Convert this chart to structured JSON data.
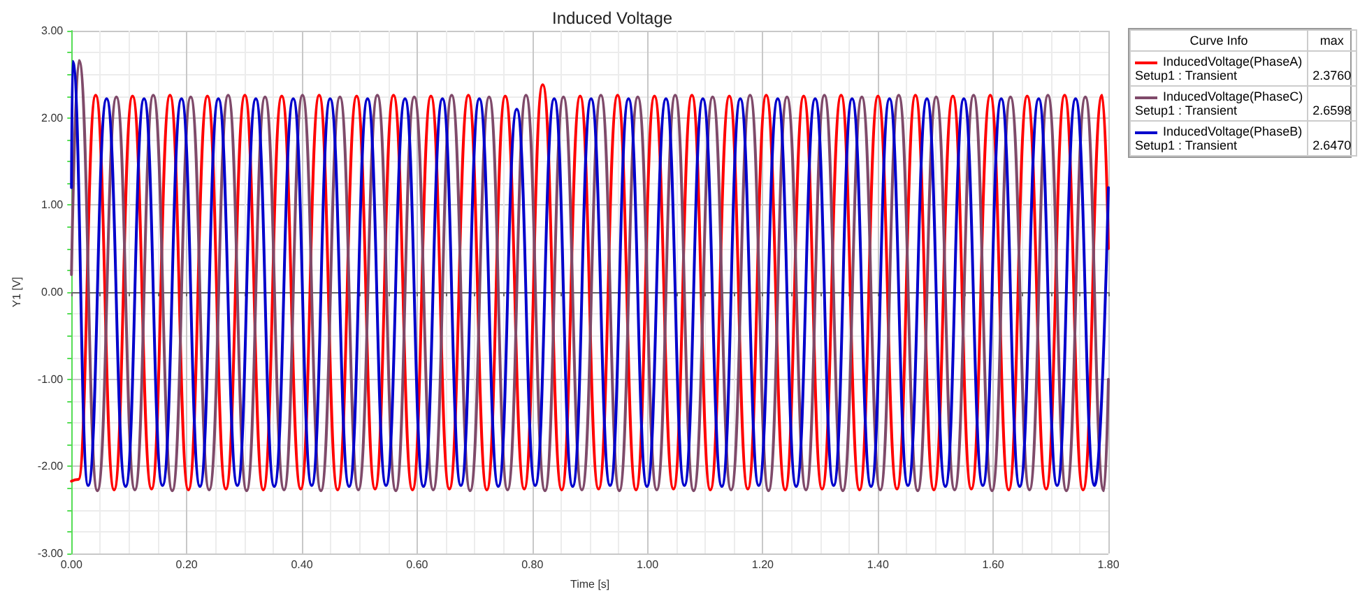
{
  "chart_data": {
    "type": "line",
    "title": "Induced Voltage",
    "xlabel": "Time [s]",
    "ylabel": "Y1 [V]",
    "legend_title": "Curve Info",
    "annotations": [
      "max",
      "Setup1 : Transient",
      "2.3760",
      "Setup1 : Transient",
      "2.6598",
      "Setup1 : Transient",
      "2.6470"
    ],
    "xlim": [
      0,
      1.8
    ],
    "xticks": [
      {
        "value": 0,
        "label": "0.00"
      },
      {
        "value": 0.2,
        "label": "0.20"
      },
      {
        "value": 0.4,
        "label": "0.40"
      },
      {
        "value": 0.6,
        "label": "0.60"
      },
      {
        "value": 0.8,
        "label": "0.80"
      },
      {
        "value": 1,
        "label": "1.00"
      },
      {
        "value": 1.2,
        "label": "1.20"
      },
      {
        "value": 1.4,
        "label": "1.40"
      },
      {
        "value": 1.6,
        "label": "1.60"
      },
      {
        "value": 1.8,
        "label": "1.80"
      }
    ],
    "ylim": [
      -3,
      3
    ],
    "yticks": [
      {
        "value": -3,
        "label": "-3.00"
      },
      {
        "value": -2,
        "label": "-2.00"
      },
      {
        "value": -1,
        "label": "-1.00"
      },
      {
        "value": 0,
        "label": "0.00"
      },
      {
        "value": 1,
        "label": "1.00"
      },
      {
        "value": 2,
        "label": "2.00"
      },
      {
        "value": 3,
        "label": "3.00"
      }
    ],
    "grid": true,
    "legend": "top right",
    "marker": "none",
    "line_style": "solid",
    "series": [
      {
        "name": "InducedVoltage(PhaseA)",
        "color": "#ff0000",
        "x": [
          0,
          0.012,
          0.042,
          0.074,
          0.106,
          0.139,
          0.171,
          0.203,
          0.236,
          0.268,
          0.301,
          0.333,
          0.365,
          0.398,
          0.43,
          0.462,
          0.495,
          0.527,
          0.559,
          0.592,
          0.624,
          0.656,
          0.689,
          0.721,
          0.753,
          0.786,
          0.818,
          0.851,
          0.883,
          0.915,
          0.948,
          0.98,
          1.012,
          1.045,
          1.077,
          1.109,
          1.142,
          1.174,
          1.206,
          1.239,
          1.271,
          1.303,
          1.336,
          1.368,
          1.4,
          1.433,
          1.465,
          1.497,
          1.53,
          1.562,
          1.595,
          1.627,
          1.659,
          1.692,
          1.724,
          1.756,
          1.789,
          1.8
        ],
        "values": [
          -2.17,
          -2.15,
          2.26,
          -2.27,
          2.25,
          -2.26,
          2.26,
          -2.27,
          2.25,
          -2.26,
          2.26,
          -2.27,
          2.25,
          -2.26,
          2.26,
          -2.27,
          2.25,
          -2.26,
          2.26,
          -2.27,
          2.25,
          -2.26,
          2.26,
          -2.27,
          2.25,
          -2.26,
          2.38,
          -2.27,
          2.25,
          -2.26,
          2.26,
          -2.27,
          2.25,
          -2.26,
          2.26,
          -2.27,
          2.25,
          -2.26,
          2.26,
          -2.27,
          2.25,
          -2.26,
          2.26,
          -2.27,
          2.25,
          -2.26,
          2.26,
          -2.27,
          2.25,
          -2.26,
          2.26,
          -2.27,
          2.25,
          -2.26,
          2.26,
          -2.27,
          2.26,
          0.5
        ]
      },
      {
        "name": "InducedVoltage(PhaseC)",
        "color": "#7f4a6a",
        "x": [
          0,
          0.013,
          0.045,
          0.078,
          0.11,
          0.142,
          0.175,
          0.207,
          0.239,
          0.272,
          0.304,
          0.336,
          0.369,
          0.401,
          0.433,
          0.466,
          0.498,
          0.531,
          0.563,
          0.595,
          0.628,
          0.66,
          0.692,
          0.725,
          0.757,
          0.789,
          0.822,
          0.854,
          0.886,
          0.919,
          0.951,
          0.983,
          1.016,
          1.048,
          1.08,
          1.113,
          1.145,
          1.178,
          1.21,
          1.242,
          1.275,
          1.307,
          1.339,
          1.372,
          1.404,
          1.436,
          1.469,
          1.501,
          1.533,
          1.566,
          1.598,
          1.63,
          1.663,
          1.695,
          1.727,
          1.76,
          1.792,
          1.8
        ],
        "values": [
          0.2,
          2.66,
          -2.28,
          2.24,
          -2.27,
          2.26,
          -2.28,
          2.24,
          -2.27,
          2.26,
          -2.28,
          2.24,
          -2.27,
          2.26,
          -2.28,
          2.24,
          -2.27,
          2.26,
          -2.28,
          2.24,
          -2.27,
          2.26,
          -2.28,
          2.24,
          -2.27,
          2.26,
          -2.28,
          2.24,
          -2.27,
          2.26,
          -2.28,
          2.24,
          -2.27,
          2.26,
          -2.28,
          2.24,
          -2.27,
          2.26,
          -2.28,
          2.24,
          -2.27,
          2.26,
          -2.28,
          2.24,
          -2.27,
          2.26,
          -2.28,
          2.24,
          -2.27,
          2.26,
          -2.28,
          2.24,
          -2.27,
          2.26,
          -2.28,
          2.24,
          -2.28,
          -1.0
        ]
      },
      {
        "name": "InducedVoltage(PhaseB)",
        "color": "#0000cc",
        "x": [
          0,
          0.002,
          0.029,
          0.061,
          0.094,
          0.126,
          0.158,
          0.191,
          0.223,
          0.255,
          0.288,
          0.32,
          0.352,
          0.385,
          0.417,
          0.449,
          0.482,
          0.514,
          0.546,
          0.579,
          0.611,
          0.644,
          0.676,
          0.708,
          0.741,
          0.773,
          0.805,
          0.838,
          0.87,
          0.902,
          0.935,
          0.967,
          0.999,
          1.032,
          1.064,
          1.096,
          1.129,
          1.161,
          1.193,
          1.226,
          1.258,
          1.291,
          1.323,
          1.355,
          1.388,
          1.42,
          1.452,
          1.485,
          1.517,
          1.549,
          1.582,
          1.614,
          1.646,
          1.679,
          1.711,
          1.743,
          1.776,
          1.8
        ],
        "values": [
          1.2,
          2.65,
          -2.22,
          2.22,
          -2.23,
          2.22,
          -2.22,
          2.22,
          -2.23,
          2.22,
          -2.22,
          2.22,
          -2.23,
          2.22,
          -2.22,
          2.22,
          -2.23,
          2.22,
          -2.22,
          2.22,
          -2.23,
          2.22,
          -2.22,
          2.22,
          -2.23,
          2.1,
          -2.22,
          2.22,
          -2.23,
          2.22,
          -2.22,
          2.22,
          -2.23,
          2.22,
          -2.22,
          2.22,
          -2.23,
          2.22,
          -2.22,
          2.22,
          -2.23,
          2.22,
          -2.22,
          2.22,
          -2.23,
          2.22,
          -2.22,
          2.22,
          -2.23,
          2.22,
          -2.22,
          2.22,
          -2.23,
          2.22,
          -2.22,
          2.22,
          -2.22,
          1.2
        ]
      }
    ]
  }
}
